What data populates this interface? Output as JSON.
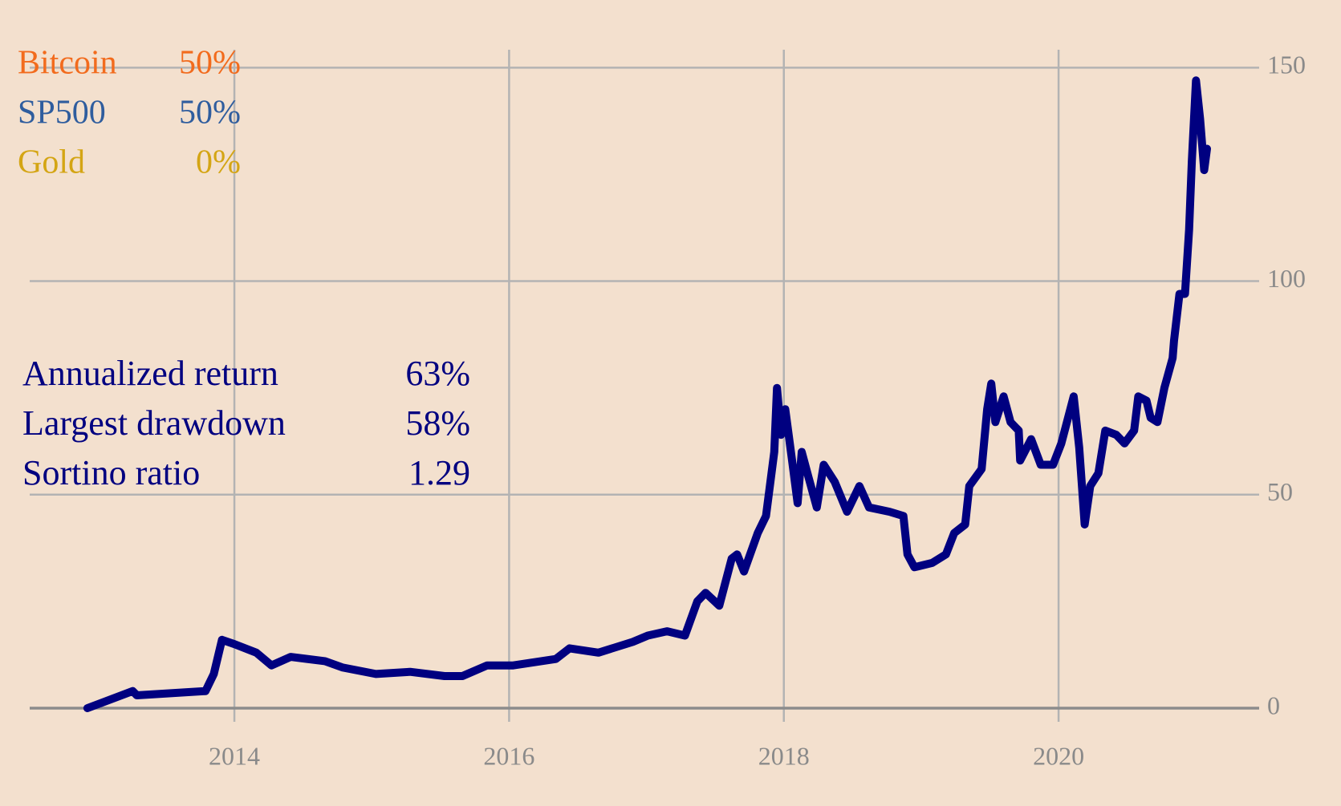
{
  "chart_data": {
    "type": "line",
    "line_color": "#000080",
    "grid": true,
    "grid_color": "#b3b3b3",
    "xlim": [
      2012.51,
      2021.46
    ],
    "xticks": [
      2014,
      2016,
      2018,
      2020
    ],
    "ylim": [
      -3.2,
      154.2
    ],
    "yticks": [
      0,
      50,
      100,
      150
    ],
    "y_axis_side": "right",
    "x": [
      2012.93,
      2013.26,
      2013.29,
      2013.79,
      2013.85,
      2013.91,
      2014.0,
      2014.16,
      2014.27,
      2014.41,
      2014.66,
      2014.79,
      2015.03,
      2015.28,
      2015.53,
      2015.66,
      2015.84,
      2016.03,
      2016.34,
      2016.44,
      2016.65,
      2016.9,
      2017.01,
      2017.15,
      2017.28,
      2017.37,
      2017.43,
      2017.53,
      2017.62,
      2017.66,
      2017.71,
      2017.81,
      2017.87,
      2017.93,
      2017.95,
      2017.98,
      2018.01,
      2018.06,
      2018.1,
      2018.13,
      2018.18,
      2018.24,
      2018.29,
      2018.37,
      2018.46,
      2018.55,
      2018.62,
      2018.77,
      2018.87,
      2018.9,
      2018.95,
      2019.08,
      2019.18,
      2019.24,
      2019.32,
      2019.35,
      2019.44,
      2019.48,
      2019.51,
      2019.54,
      2019.6,
      2019.65,
      2019.71,
      2019.72,
      2019.8,
      2019.87,
      2019.96,
      2020.02,
      2020.11,
      2020.15,
      2020.19,
      2020.23,
      2020.29,
      2020.34,
      2020.42,
      2020.48,
      2020.55,
      2020.58,
      2020.64,
      2020.67,
      2020.72,
      2020.77,
      2020.83,
      2020.84,
      2020.88,
      2020.92,
      2020.95,
      2020.97,
      2021.0,
      2021.03,
      2021.06,
      2021.08
    ],
    "values": [
      0,
      4,
      3,
      4,
      8,
      16,
      15,
      13,
      10,
      12,
      11,
      9.5,
      8,
      8.5,
      7.5,
      7.5,
      10,
      10,
      11.5,
      14,
      13,
      15.5,
      17,
      18,
      17,
      25,
      27,
      24,
      35,
      36,
      32,
      41,
      45,
      60,
      75,
      64,
      70,
      58,
      48,
      60,
      54,
      47,
      57,
      53,
      46,
      52,
      47,
      46,
      45,
      36,
      33,
      34,
      36,
      41,
      43,
      52,
      56,
      70,
      76,
      67,
      73,
      67,
      65,
      58,
      63,
      57,
      57,
      62,
      73,
      61,
      43,
      52,
      55,
      65,
      64,
      62,
      65,
      73,
      72,
      68,
      67,
      75,
      82,
      86,
      97,
      97,
      112,
      128,
      147,
      138,
      126,
      131
    ],
    "allocation": [
      {
        "name": "Bitcoin",
        "label": "50%",
        "color": "#f26b1d"
      },
      {
        "name": "SP500",
        "label": "50%",
        "color": "#2f5d9e"
      },
      {
        "name": "Gold",
        "label": "0%",
        "color": "#d4a514"
      }
    ],
    "stats": [
      {
        "name": "Annualized return",
        "label": "63%"
      },
      {
        "name": "Largest drawdown",
        "label": "58%"
      },
      {
        "name": "Sortino ratio",
        "label": "1.29"
      }
    ]
  }
}
